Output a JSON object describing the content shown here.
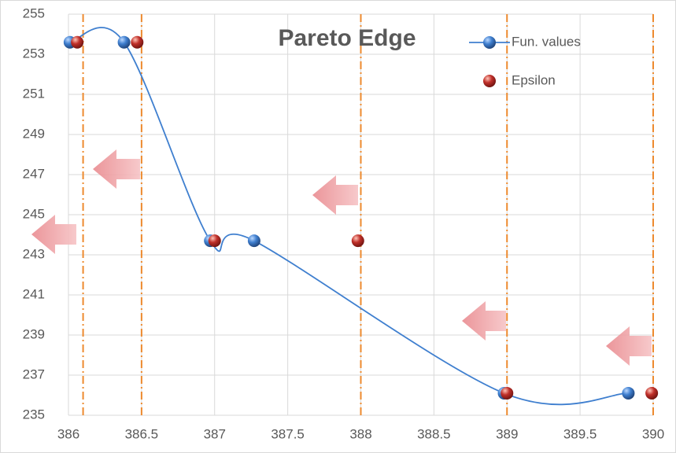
{
  "chart_data": {
    "type": "scatter",
    "title": "Pareto Edge",
    "series": [
      {
        "name": "Fun. values",
        "color": "#3f7fcf",
        "line": "smooth",
        "x": [
          386.01,
          386.38,
          386.97,
          387.27,
          388.98,
          389.83
        ],
        "values": [
          253.6,
          253.6,
          243.7,
          243.7,
          236.1,
          236.1
        ]
      },
      {
        "name": "Epsilon",
        "color": "#c0302a",
        "line": "none",
        "x": [
          386.06,
          386.47,
          387.0,
          387.98,
          389.0,
          389.99
        ],
        "values": [
          253.6,
          253.6,
          243.7,
          243.7,
          236.1,
          236.1
        ]
      }
    ],
    "vlines": {
      "color": "#ed8a2e",
      "x": [
        386.1,
        386.5,
        388,
        389,
        390
      ]
    },
    "xlim": [
      386,
      390
    ],
    "xticks": [
      386,
      386.5,
      387,
      387.5,
      388,
      388.5,
      389,
      389.5,
      390
    ],
    "ylim": [
      235,
      255
    ],
    "yticks": [
      235,
      237,
      239,
      241,
      243,
      245,
      247,
      249,
      251,
      253,
      255
    ],
    "grid": true,
    "legend": "top-right"
  }
}
